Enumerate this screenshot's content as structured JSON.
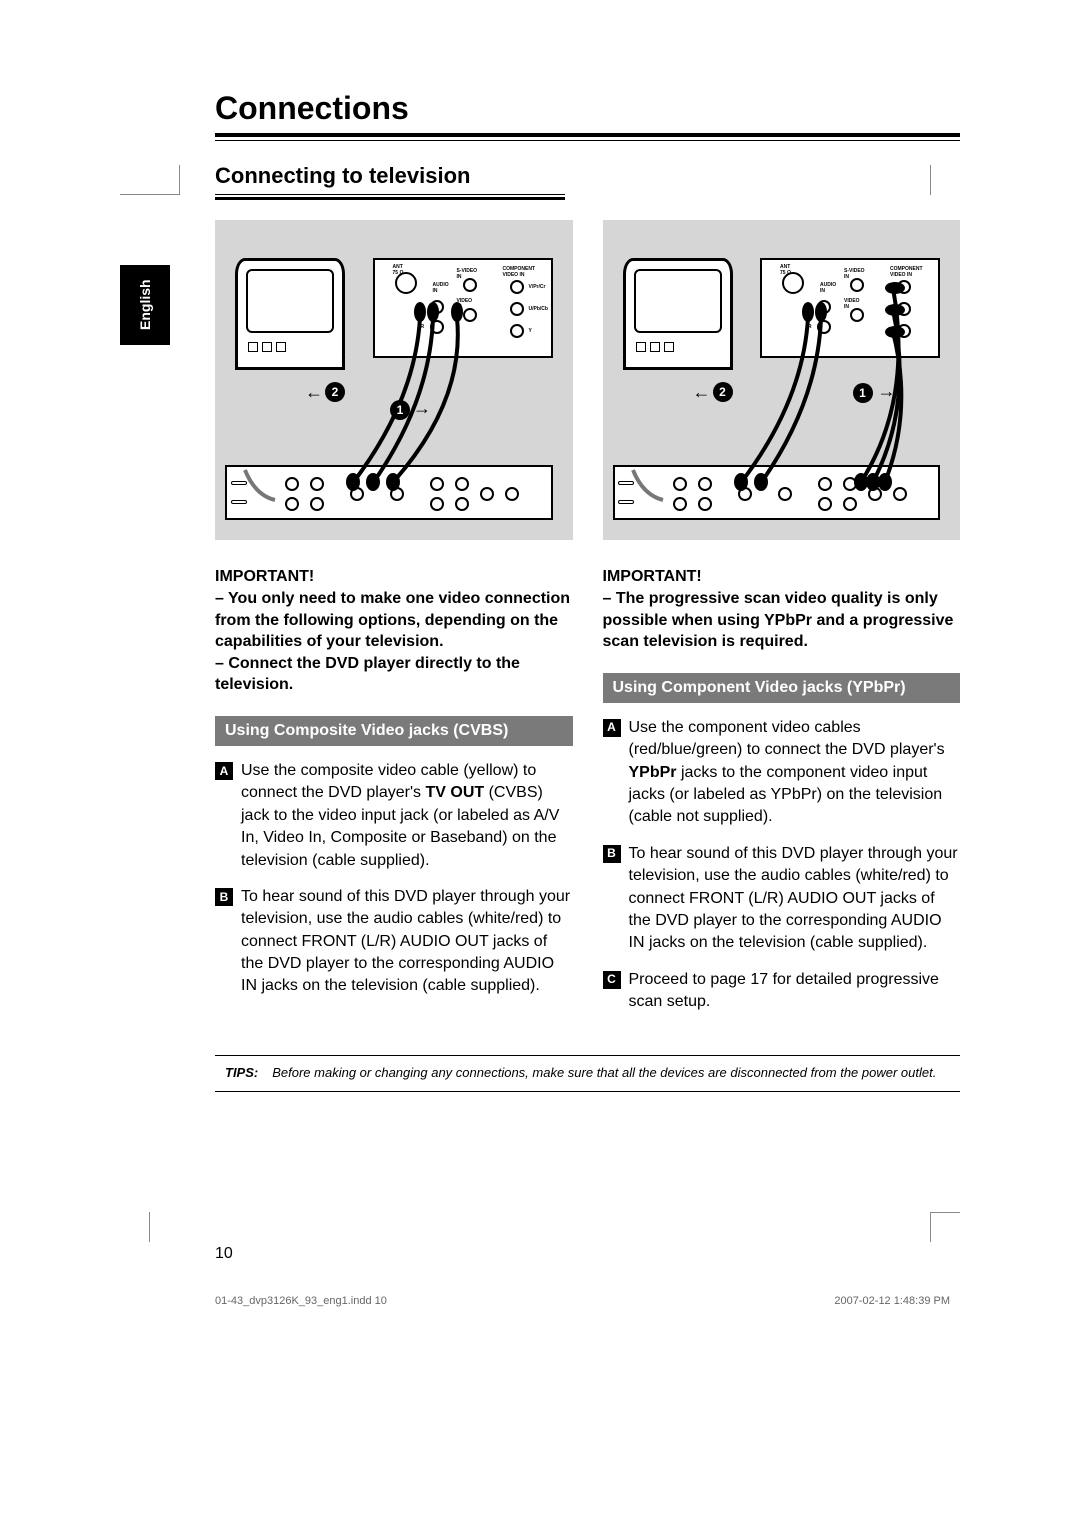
{
  "lang_tab": "English",
  "title": "Connections",
  "section": "Connecting to television",
  "col1": {
    "important_label": "IMPORTANT!",
    "important_lines": [
      "–  You only need to make one video connection from the following options, depending on the capabilities of your television.",
      "–  Connect the DVD player directly to the television."
    ],
    "box_header": "Using Composite Video jacks (CVBS)",
    "steps": [
      {
        "n": "A",
        "html": "Use the composite video cable (yellow) to connect the DVD player's <b>TV OUT</b> (CVBS) jack to the video input jack (or labeled as A/V In, Video In, Composite or Baseband) on the television (cable supplied)."
      },
      {
        "n": "B",
        "html": "To hear sound of this DVD player through your television, use the audio cables (white/red) to connect FRONT (L/R) AUDIO OUT jacks of the DVD player to the corresponding AUDIO IN jacks on the television (cable supplied)."
      }
    ]
  },
  "col2": {
    "important_label": "IMPORTANT!",
    "important_lines": [
      "–  The progressive scan video quality is only possible when using YPbPr and a progressive scan television is required."
    ],
    "box_header": "Using Component Video jacks (YPbPr)",
    "steps": [
      {
        "n": "A",
        "html": "Use the component video cables (red/blue/green) to connect the DVD player's <b>YPbPr</b> jacks to the component video input jacks (or labeled as YPbPr) on the television (cable not supplied)."
      },
      {
        "n": "B",
        "html": "To hear sound of this DVD player through your television, use the audio cables (white/red) to connect FRONT (L/R) AUDIO OUT jacks of the DVD player to the corresponding AUDIO IN jacks on the television (cable supplied)."
      },
      {
        "n": "C",
        "html": "Proceed to page 17 for detailed progressive scan setup."
      }
    ]
  },
  "tips": {
    "label": "TIPS:",
    "text": "Before making or changing any connections, make sure that all the devices are disconnected from the power outlet."
  },
  "page_number": "10",
  "footer": {
    "left": "01-43_dvp3126K_93_eng1.indd   10",
    "right": "2007-02-12   1:48:39 PM"
  },
  "diagram_markers": {
    "callout1": "1",
    "callout2": "2"
  },
  "colors": {
    "diagram_bg": "#d6d6d6",
    "box_header_bg": "#7a7a7a"
  }
}
